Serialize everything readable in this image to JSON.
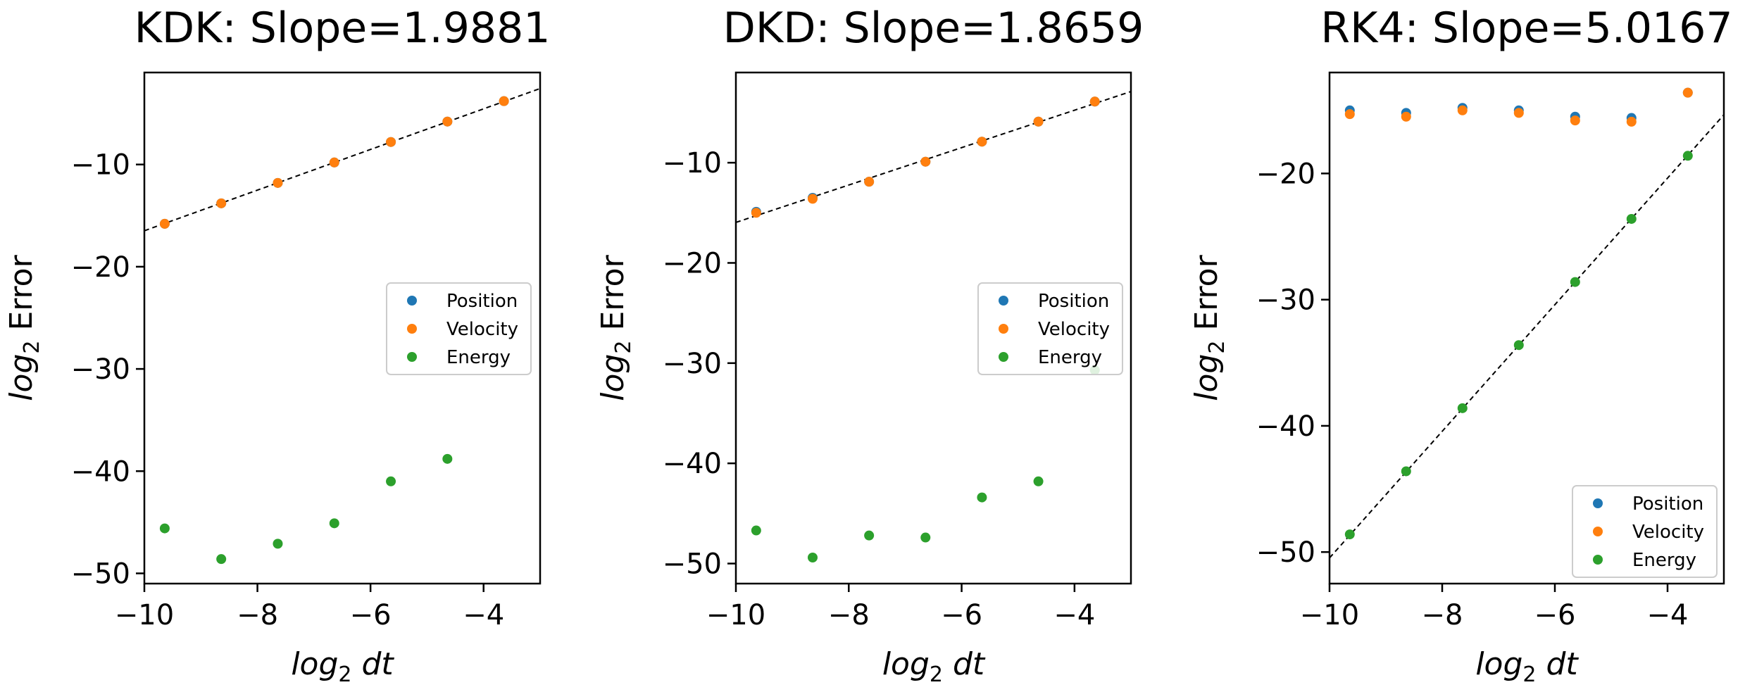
{
  "chart_data": [
    {
      "type": "scatter",
      "title": "KDK: Slope=1.9881",
      "xlabel": "log2 dt",
      "ylabel": "log2 Error",
      "xlim": [
        -10,
        -3
      ],
      "ylim": [
        -51,
        -1
      ],
      "xticks": [
        -10,
        -8,
        -6,
        -4
      ],
      "yticks": [
        -10,
        -20,
        -30,
        -40,
        -50
      ],
      "legend": "center-right",
      "x": [
        -9.64,
        -8.64,
        -7.64,
        -6.64,
        -5.64,
        -4.64,
        -3.64
      ],
      "series": [
        {
          "name": "Position",
          "color": "#1f77b4",
          "values": [
            -15.8,
            -13.8,
            -11.8,
            -9.8,
            -7.8,
            -5.8,
            -3.8
          ]
        },
        {
          "name": "Velocity",
          "color": "#ff7f0e",
          "values": [
            -15.8,
            -13.8,
            -11.8,
            -9.8,
            -7.8,
            -5.8,
            -3.8
          ]
        },
        {
          "name": "Energy",
          "color": "#2ca02c",
          "values": [
            -45.6,
            -48.6,
            -47.1,
            -45.1,
            -41.0,
            -38.8,
            null
          ]
        }
      ],
      "fit_line": {
        "slope": 1.9881,
        "intercept": 3.4,
        "style": "dashed",
        "color": "#000000"
      }
    },
    {
      "type": "scatter",
      "title": "DKD: Slope=1.8659",
      "xlabel": "log2 dt",
      "ylabel": "log2 Error",
      "xlim": [
        -10,
        -3
      ],
      "ylim": [
        -52,
        -1
      ],
      "xticks": [
        -10,
        -8,
        -6,
        -4
      ],
      "yticks": [
        -10,
        -20,
        -30,
        -40,
        -50
      ],
      "legend": "center-right",
      "x": [
        -9.64,
        -8.64,
        -7.64,
        -6.64,
        -5.64,
        -4.64,
        -3.64
      ],
      "series": [
        {
          "name": "Position",
          "color": "#1f77b4",
          "values": [
            -14.9,
            -13.5,
            -11.9,
            -9.9,
            -7.9,
            -5.9,
            -3.9
          ]
        },
        {
          "name": "Velocity",
          "color": "#ff7f0e",
          "values": [
            -15.0,
            -13.6,
            -11.9,
            -9.9,
            -7.9,
            -5.9,
            -3.9
          ]
        },
        {
          "name": "Energy",
          "color": "#2ca02c",
          "values": [
            -46.7,
            -49.4,
            -47.2,
            -47.4,
            -43.4,
            -41.8,
            -30.7
          ]
        }
      ],
      "fit_line": {
        "slope": 1.8659,
        "intercept": 2.7,
        "style": "dashed",
        "color": "#000000"
      }
    },
    {
      "type": "scatter",
      "title": "RK4: Slope=5.0167",
      "xlabel": "log2 dt",
      "ylabel": "log2 Error",
      "xlim": [
        -10,
        -3
      ],
      "ylim": [
        -52.5,
        -12
      ],
      "xticks": [
        -10,
        -8,
        -6,
        -4
      ],
      "yticks": [
        -20,
        -30,
        -40,
        -50
      ],
      "legend": "lower-right",
      "x": [
        -9.64,
        -8.64,
        -7.64,
        -6.64,
        -5.64,
        -4.64,
        -3.64
      ],
      "series": [
        {
          "name": "Position",
          "color": "#1f77b4",
          "values": [
            -15.0,
            -15.2,
            -14.8,
            -15.0,
            -15.5,
            -15.6,
            -13.6
          ]
        },
        {
          "name": "Velocity",
          "color": "#ff7f0e",
          "values": [
            -15.3,
            -15.5,
            -15.0,
            -15.2,
            -15.8,
            -15.9,
            -13.6
          ]
        },
        {
          "name": "Energy",
          "color": "#2ca02c",
          "values": [
            -48.6,
            -43.6,
            -38.6,
            -33.6,
            -28.6,
            -23.6,
            -18.6
          ]
        }
      ],
      "fit_line": {
        "slope": 5.0167,
        "intercept": -0.3,
        "style": "dashed",
        "color": "#000000"
      }
    }
  ]
}
